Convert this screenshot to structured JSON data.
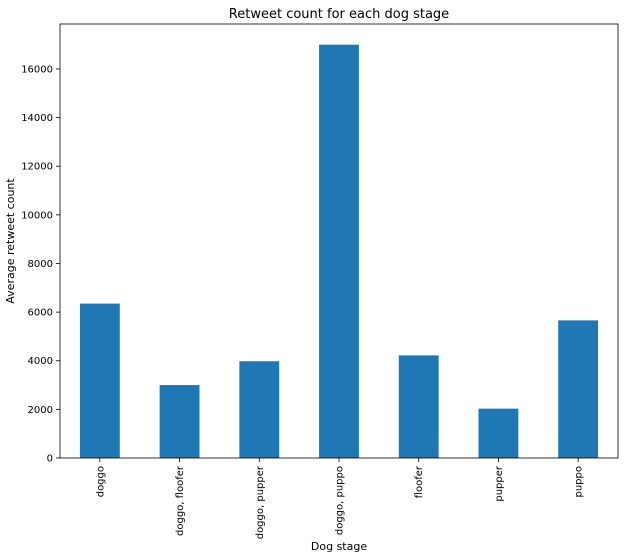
{
  "chart_data": {
    "type": "bar",
    "title": "Retweet count for each dog stage",
    "xlabel": "Dog stage",
    "ylabel": "Average retweet count",
    "categories": [
      "doggo",
      "doggo, floofer",
      "doggo, pupper",
      "doggo, puppo",
      "floofer",
      "pupper",
      "puppo"
    ],
    "values": [
      6350,
      3000,
      3980,
      17000,
      4220,
      2030,
      5660
    ],
    "ylim": [
      0,
      17850
    ],
    "yticks": [
      0,
      2000,
      4000,
      6000,
      8000,
      10000,
      12000,
      14000,
      16000
    ],
    "bar_color": "#1f77b4",
    "grid": false,
    "legend": "none"
  }
}
